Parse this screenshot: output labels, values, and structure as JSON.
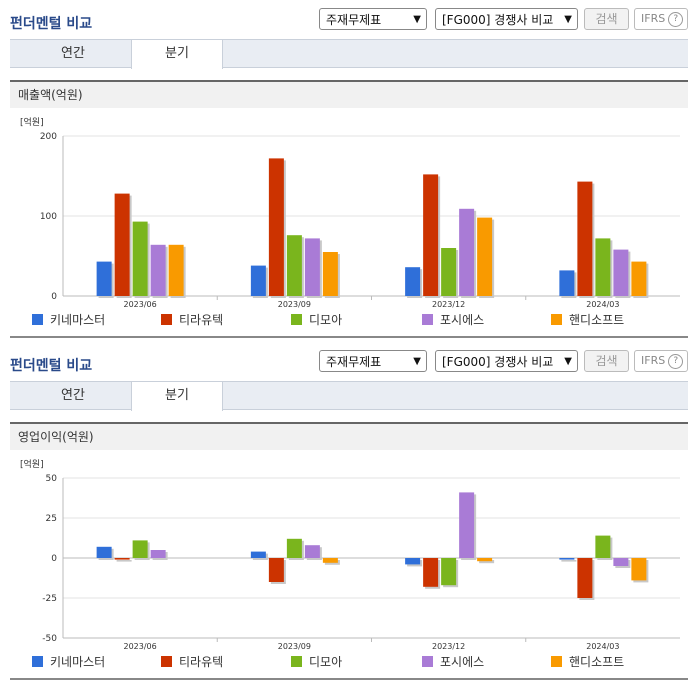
{
  "panels": [
    {
      "title": "펀더멘털 비교",
      "select1": "주재무제표",
      "select2": "[FG000] 경쟁사 비교",
      "search_label": "검색",
      "ifrs_label": "IFRS",
      "help_glyph": "?",
      "tabs": [
        {
          "label": "연간",
          "active": false
        },
        {
          "label": "분기",
          "active": true
        }
      ],
      "section_title": "매출액(억원)"
    },
    {
      "title": "펀더멘털 비교",
      "select1": "주재무제표",
      "select2": "[FG000] 경쟁사 비교",
      "search_label": "검색",
      "ifrs_label": "IFRS",
      "help_glyph": "?",
      "tabs": [
        {
          "label": "연간",
          "active": false
        },
        {
          "label": "분기",
          "active": true
        }
      ],
      "section_title": "영업이익(억원)"
    }
  ],
  "chart_data": [
    {
      "type": "bar",
      "title": "매출액(억원)",
      "unit_label": "[억원]",
      "categories": [
        "2023/06",
        "2023/09",
        "2023/12",
        "2024/03"
      ],
      "ylim": [
        0,
        200
      ],
      "yticks": [
        0,
        100,
        200
      ],
      "grid": true,
      "legend_position": "bottom",
      "series": [
        {
          "name": "키네마스터",
          "color": "#2f6fd9",
          "values": [
            43,
            38,
            36,
            32
          ]
        },
        {
          "name": "티라유텍",
          "color": "#cc3300",
          "values": [
            128,
            172,
            152,
            143
          ]
        },
        {
          "name": "디모아",
          "color": "#7ab51d",
          "values": [
            93,
            76,
            60,
            72
          ]
        },
        {
          "name": "포시에스",
          "color": "#a97bd6",
          "values": [
            64,
            72,
            109,
            58
          ]
        },
        {
          "name": "핸디소프트",
          "color": "#f99a00",
          "values": [
            64,
            55,
            98,
            43
          ]
        }
      ]
    },
    {
      "type": "bar",
      "title": "영업이익(억원)",
      "unit_label": "[억원]",
      "categories": [
        "2023/06",
        "2023/09",
        "2023/12",
        "2024/03"
      ],
      "ylim": [
        -50,
        50
      ],
      "yticks": [
        -50,
        -25,
        0,
        25,
        50
      ],
      "grid": true,
      "legend_position": "bottom",
      "series": [
        {
          "name": "키네마스터",
          "color": "#2f6fd9",
          "values": [
            7,
            4,
            -4,
            -1
          ]
        },
        {
          "name": "티라유텍",
          "color": "#cc3300",
          "values": [
            -1,
            -15,
            -18,
            -25
          ]
        },
        {
          "name": "디모아",
          "color": "#7ab51d",
          "values": [
            11,
            12,
            -17,
            14
          ]
        },
        {
          "name": "포시에스",
          "color": "#a97bd6",
          "values": [
            5,
            8,
            41,
            -5
          ]
        },
        {
          "name": "핸디소프트",
          "color": "#f99a00",
          "values": [
            0,
            -3,
            -2,
            -14
          ]
        }
      ]
    }
  ]
}
